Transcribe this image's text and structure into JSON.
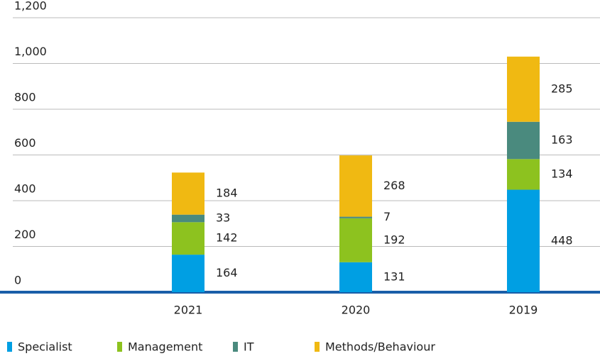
{
  "chart_data": {
    "type": "stacked_bar",
    "categories": [
      "2021",
      "2020",
      "2019"
    ],
    "series": [
      {
        "name": "Specialist",
        "color": "#009fe3",
        "values": [
          164,
          131,
          448
        ]
      },
      {
        "name": "Management",
        "color": "#8dc21f",
        "values": [
          142,
          192,
          134
        ]
      },
      {
        "name": "IT",
        "color": "#4a8a7e",
        "values": [
          33,
          7,
          163
        ]
      },
      {
        "name": "Methods/Behaviour",
        "color": "#f0b912",
        "values": [
          184,
          268,
          285
        ]
      }
    ],
    "ylim": [
      0,
      1200
    ],
    "yticks": [
      0,
      200,
      400,
      600,
      800,
      {
        "value": 1000,
        "label": "1,000"
      },
      {
        "value": 1200,
        "label": "1,200"
      }
    ],
    "grid": true,
    "legend": "bottom"
  }
}
